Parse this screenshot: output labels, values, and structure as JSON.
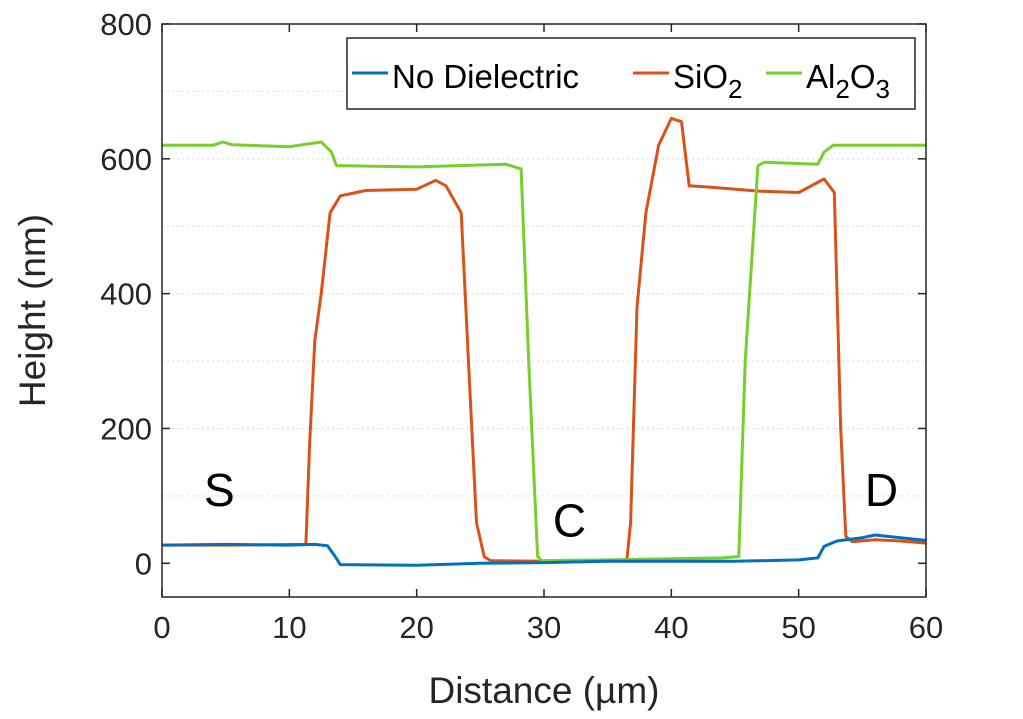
{
  "chart_data": {
    "type": "line",
    "title": "",
    "xlabel": "Distance (µm)",
    "ylabel": "Height (nm)",
    "xlim": [
      0,
      60
    ],
    "ylim": [
      -50,
      800
    ],
    "xticks": [
      0,
      10,
      20,
      30,
      40,
      50,
      60
    ],
    "yticks": [
      0,
      200,
      400,
      600,
      800
    ],
    "grid": "horizontal dotted",
    "legend_position": "top-right",
    "series": [
      {
        "name": "No Dielectric",
        "name_parts": [
          [
            "No Dielectric",
            false
          ]
        ],
        "color": "#0072BD",
        "x": [
          0,
          5,
          10,
          12,
          13,
          13.6,
          14,
          20,
          25,
          30,
          35,
          40,
          45,
          50,
          51.5,
          52,
          53,
          55,
          56,
          58,
          60
        ],
        "y": [
          27,
          28,
          27,
          28,
          26,
          10,
          -2,
          -3,
          0,
          1,
          3,
          3,
          3,
          5,
          8,
          25,
          33,
          38,
          42,
          38,
          34
        ]
      },
      {
        "name": "SiO2",
        "name_parts": [
          [
            "SiO",
            false
          ],
          [
            "2",
            true
          ]
        ],
        "color": "#D95319",
        "x": [
          0,
          5,
          11.3,
          11.6,
          12.0,
          12.5,
          13.2,
          14.0,
          16,
          20,
          21.5,
          22.3,
          23.5,
          24.2,
          24.7,
          25.3,
          25.8,
          30,
          36.5,
          36.8,
          37.3,
          38.0,
          39.0,
          40.0,
          40.8,
          41.4,
          43,
          47,
          50,
          52,
          52.8,
          53.3,
          53.7,
          54.2,
          56,
          58,
          60
        ],
        "y": [
          27,
          27,
          28,
          180,
          330,
          400,
          520,
          545,
          553,
          555,
          568,
          560,
          520,
          250,
          60,
          10,
          4,
          3,
          4,
          60,
          380,
          520,
          620,
          660,
          655,
          560,
          558,
          552,
          550,
          570,
          550,
          200,
          40,
          32,
          35,
          33,
          30
        ]
      },
      {
        "name": "Al2O3",
        "name_parts": [
          [
            "Al",
            false
          ],
          [
            "2",
            true
          ],
          [
            "O",
            false
          ],
          [
            "3",
            true
          ]
        ],
        "color": "#77D02A",
        "x": [
          0,
          4,
          4.8,
          5.5,
          10,
          12.5,
          13.3,
          13.7,
          20,
          27,
          28.2,
          28.8,
          29.5,
          29.8,
          35,
          44,
          45.3,
          45.8,
          46.8,
          47.3,
          51.5,
          52,
          52.7,
          55,
          60
        ],
        "y": [
          620,
          620,
          625,
          621,
          618,
          625,
          610,
          590,
          588,
          592,
          585,
          300,
          10,
          4,
          5,
          8,
          10,
          300,
          590,
          595,
          592,
          610,
          620,
          620,
          620
        ]
      }
    ],
    "annotations": [
      {
        "text": "S",
        "x": 4.5,
        "y": 85
      },
      {
        "text": "C",
        "x": 32,
        "y": 40
      },
      {
        "text": "D",
        "x": 56.5,
        "y": 85
      }
    ]
  }
}
